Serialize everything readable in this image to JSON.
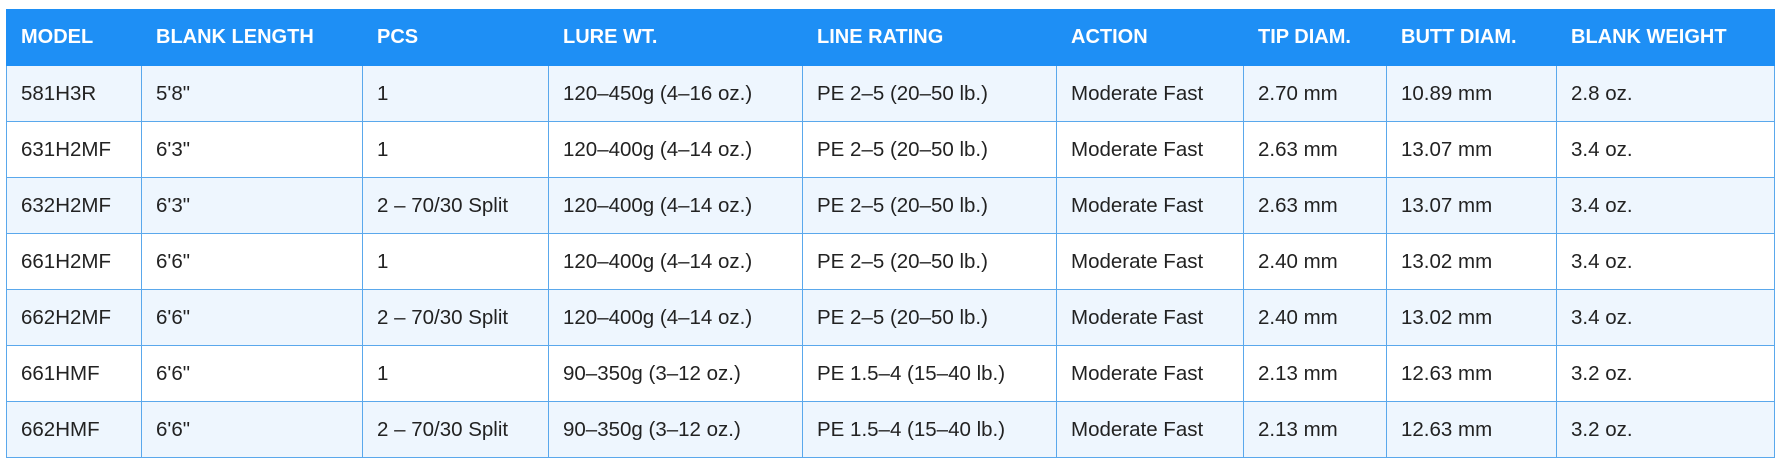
{
  "table": {
    "header": [
      "MODEL",
      "BLANK LENGTH",
      "PCS",
      "LURE WT.",
      "LINE RATING",
      "ACTION",
      "TIP DIAM.",
      "BUTT DIAM.",
      "BLANK WEIGHT"
    ],
    "rows": [
      [
        "581H3R",
        "5'8\"",
        "1",
        "120–450g (4–16 oz.)",
        "PE 2–5 (20–50 lb.)",
        "Moderate Fast",
        "2.70 mm",
        "10.89 mm",
        "2.8 oz."
      ],
      [
        "631H2MF",
        "6'3\"",
        "1",
        "120–400g (4–14 oz.)",
        "PE 2–5 (20–50 lb.)",
        "Moderate Fast",
        "2.63 mm",
        "13.07 mm",
        "3.4 oz."
      ],
      [
        "632H2MF",
        "6'3\"",
        "2 – 70/30 Split",
        "120–400g (4–14 oz.)",
        "PE 2–5 (20–50 lb.)",
        "Moderate Fast",
        "2.63 mm",
        "13.07 mm",
        "3.4 oz."
      ],
      [
        "661H2MF",
        "6'6\"",
        "1",
        "120–400g (4–14 oz.)",
        "PE 2–5 (20–50 lb.)",
        "Moderate Fast",
        "2.40 mm",
        "13.02 mm",
        "3.4 oz."
      ],
      [
        "662H2MF",
        "6'6\"",
        "2 – 70/30 Split",
        "120–400g (4–14 oz.)",
        "PE 2–5 (20–50 lb.)",
        "Moderate Fast",
        "2.40 mm",
        "13.02 mm",
        "3.4 oz."
      ],
      [
        "661HMF",
        "6'6\"",
        "1",
        "90–350g (3–12 oz.)",
        "PE 1.5–4 (15–40 lb.)",
        "Moderate Fast",
        "2.13 mm",
        "12.63 mm",
        "3.2 oz."
      ],
      [
        "662HMF",
        "6'6\"",
        "2 – 70/30 Split",
        "90–350g (3–12 oz.)",
        "PE 1.5–4 (15–40 lb.)",
        "Moderate Fast",
        "2.13 mm",
        "12.63 mm",
        "3.2 oz."
      ]
    ]
  }
}
